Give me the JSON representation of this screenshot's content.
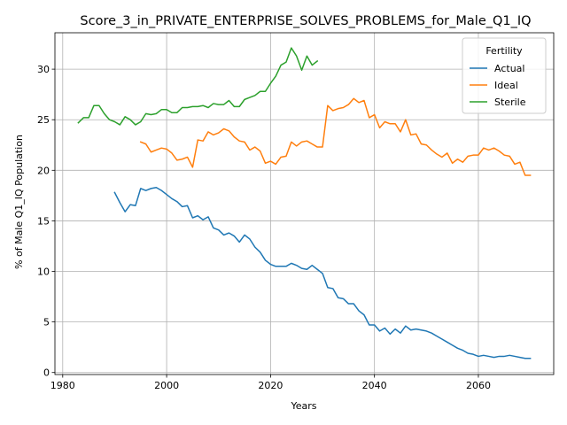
{
  "chart_data": {
    "type": "line",
    "title": "Score_3_in_PRIVATE_ENTERPRISE_SOLVES_PROBLEMS_for_Male_Q1_IQ",
    "xlabel": "Years",
    "ylabel": "% of Male Q1_IQ Population",
    "xlim": [
      1978.5,
      2074.5
    ],
    "ylim": [
      -0.2,
      33.6
    ],
    "xticks": [
      1980,
      2000,
      2020,
      2040,
      2060
    ],
    "yticks": [
      0,
      5,
      10,
      15,
      20,
      25,
      30
    ],
    "grid": true,
    "legend": {
      "title": "Fertility",
      "placement": "top-right"
    },
    "series": [
      {
        "name": "Actual",
        "color": "#1f77b4",
        "x": [
          1990,
          1991,
          1992,
          1993,
          1994,
          1995,
          1996,
          1997,
          1998,
          1999,
          2000,
          2001,
          2002,
          2003,
          2004,
          2005,
          2006,
          2007,
          2008,
          2009,
          2010,
          2011,
          2012,
          2013,
          2014,
          2015,
          2016,
          2017,
          2018,
          2019,
          2020,
          2021,
          2022,
          2023,
          2024,
          2025,
          2026,
          2027,
          2028,
          2029,
          2030,
          2031,
          2032,
          2033,
          2034,
          2035,
          2036,
          2037,
          2038,
          2039,
          2040,
          2041,
          2042,
          2043,
          2044,
          2045,
          2046,
          2047,
          2048,
          2049,
          2050,
          2051,
          2052,
          2053,
          2054,
          2055,
          2056,
          2057,
          2058,
          2059,
          2060,
          2061,
          2062,
          2063,
          2064,
          2065,
          2066,
          2067,
          2068,
          2069,
          2070
        ],
        "values": [
          17.8,
          16.8,
          15.9,
          16.6,
          16.5,
          18.2,
          18.0,
          18.2,
          18.3,
          18.0,
          17.6,
          17.2,
          16.9,
          16.4,
          16.5,
          15.3,
          15.5,
          15.1,
          15.4,
          14.3,
          14.1,
          13.6,
          13.8,
          13.5,
          12.9,
          13.6,
          13.2,
          12.4,
          11.9,
          11.1,
          10.7,
          10.5,
          10.5,
          10.5,
          10.8,
          10.6,
          10.3,
          10.2,
          10.6,
          10.2,
          9.8,
          8.4,
          8.3,
          7.4,
          7.3,
          6.8,
          6.8,
          6.1,
          5.7,
          4.7,
          4.7,
          4.1,
          4.4,
          3.8,
          4.3,
          3.9,
          4.6,
          4.2,
          4.3,
          4.2,
          4.1,
          3.9,
          3.6,
          3.3,
          3.0,
          2.7,
          2.4,
          2.2,
          1.9,
          1.8,
          1.6,
          1.7,
          1.6,
          1.5,
          1.6,
          1.6,
          1.7,
          1.6,
          1.5,
          1.4,
          1.4
        ]
      },
      {
        "name": "Ideal",
        "color": "#ff7f0e",
        "x": [
          1995,
          1996,
          1997,
          1998,
          1999,
          2000,
          2001,
          2002,
          2003,
          2004,
          2005,
          2006,
          2007,
          2008,
          2009,
          2010,
          2011,
          2012,
          2013,
          2014,
          2015,
          2016,
          2017,
          2018,
          2019,
          2020,
          2021,
          2022,
          2023,
          2024,
          2025,
          2026,
          2027,
          2028,
          2029,
          2030,
          2031,
          2032,
          2033,
          2034,
          2035,
          2036,
          2037,
          2038,
          2039,
          2040,
          2041,
          2042,
          2043,
          2044,
          2045,
          2046,
          2047,
          2048,
          2049,
          2050,
          2051,
          2052,
          2053,
          2054,
          2055,
          2056,
          2057,
          2058,
          2059,
          2060,
          2061,
          2062,
          2063,
          2064,
          2065,
          2066,
          2067,
          2068,
          2069,
          2070
        ],
        "values": [
          22.8,
          22.6,
          21.8,
          22.0,
          22.2,
          22.1,
          21.7,
          21.0,
          21.1,
          21.3,
          20.3,
          23.0,
          22.9,
          23.8,
          23.5,
          23.7,
          24.1,
          23.9,
          23.3,
          22.9,
          22.8,
          22.0,
          22.3,
          21.9,
          20.7,
          20.9,
          20.6,
          21.3,
          21.4,
          22.8,
          22.4,
          22.8,
          22.9,
          22.6,
          22.3,
          22.3,
          26.4,
          25.9,
          26.1,
          26.2,
          26.5,
          27.1,
          26.7,
          26.9,
          25.2,
          25.5,
          24.2,
          24.8,
          24.6,
          24.6,
          23.8,
          25.0,
          23.5,
          23.6,
          22.6,
          22.5,
          22.0,
          21.6,
          21.3,
          21.7,
          20.7,
          21.1,
          20.8,
          21.4,
          21.5,
          21.5,
          22.2,
          22.0,
          22.2,
          21.9,
          21.5,
          21.4,
          20.6,
          20.8,
          19.5,
          19.5
        ]
      },
      {
        "name": "Sterile",
        "color": "#2ca02c",
        "x": [
          1983,
          1984,
          1985,
          1986,
          1987,
          1988,
          1989,
          1990,
          1991,
          1992,
          1993,
          1994,
          1995,
          1996,
          1997,
          1998,
          1999,
          2000,
          2001,
          2002,
          2003,
          2004,
          2005,
          2006,
          2007,
          2008,
          2009,
          2010,
          2011,
          2012,
          2013,
          2014,
          2015,
          2016,
          2017,
          2018,
          2019,
          2020,
          2021,
          2022,
          2023,
          2024,
          2025,
          2026,
          2027,
          2028,
          2029
        ],
        "values": [
          24.7,
          25.2,
          25.2,
          26.4,
          26.4,
          25.6,
          25.0,
          24.8,
          24.5,
          25.3,
          25.0,
          24.5,
          24.8,
          25.6,
          25.5,
          25.6,
          26.0,
          26.0,
          25.7,
          25.7,
          26.2,
          26.2,
          26.3,
          26.3,
          26.4,
          26.2,
          26.6,
          26.5,
          26.5,
          26.9,
          26.3,
          26.3,
          27.0,
          27.2,
          27.4,
          27.8,
          27.8,
          28.6,
          29.3,
          30.4,
          30.7,
          32.1,
          31.3,
          29.9,
          31.3,
          30.4,
          30.8
        ]
      }
    ]
  }
}
